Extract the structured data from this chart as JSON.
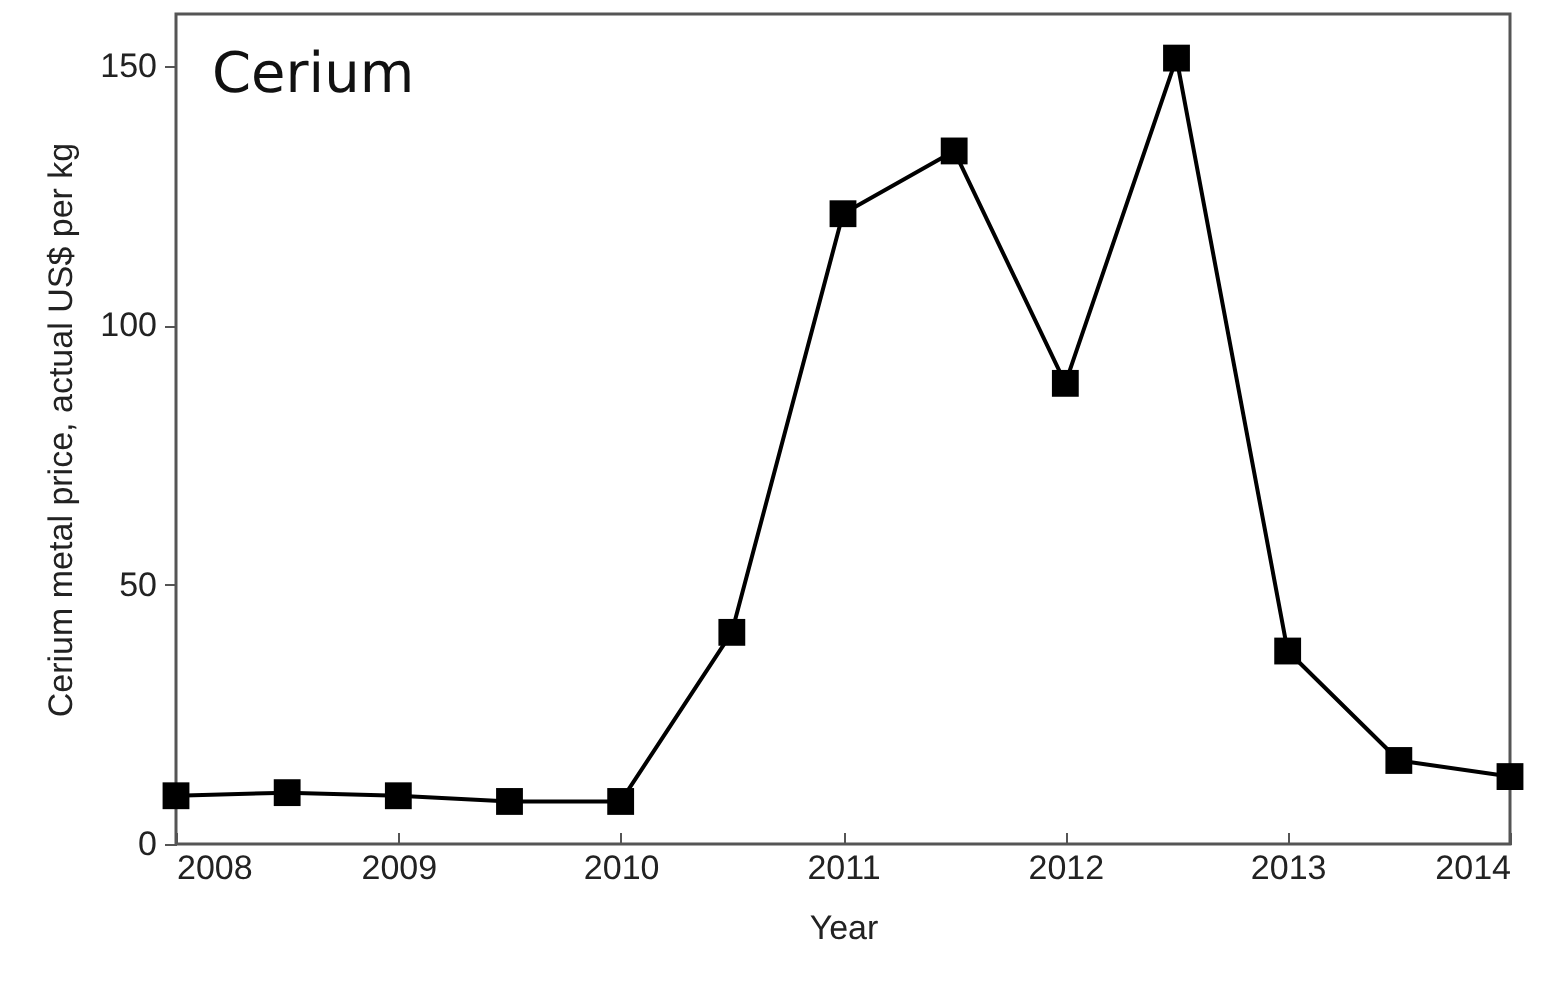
{
  "chart_data": {
    "type": "line",
    "title": "Cerium",
    "xlabel": "Year",
    "ylabel": "Cerium metal price, actual US$ per kg",
    "x": [
      2008,
      2008.5,
      2009,
      2009.5,
      2010,
      2010.5,
      2011,
      2011.5,
      2012,
      2012.5,
      2013,
      2013.5,
      2014
    ],
    "series": [
      {
        "color": "#000000",
        "values": [
          9.3,
          9.9,
          9.3,
          8.2,
          8.2,
          40.8,
          121.5,
          133.6,
          88.8,
          151.5,
          37.2,
          16.1,
          13.0
        ]
      }
    ],
    "xlim": [
      2008,
      2014
    ],
    "xticks": [
      2008,
      2009,
      2010,
      2011,
      2012,
      2013,
      2014
    ],
    "ylim": [
      0,
      160
    ],
    "yticks": [
      0,
      50,
      100,
      150
    ],
    "grid": false,
    "legend": false,
    "marker": "square",
    "line_style": "solid"
  }
}
